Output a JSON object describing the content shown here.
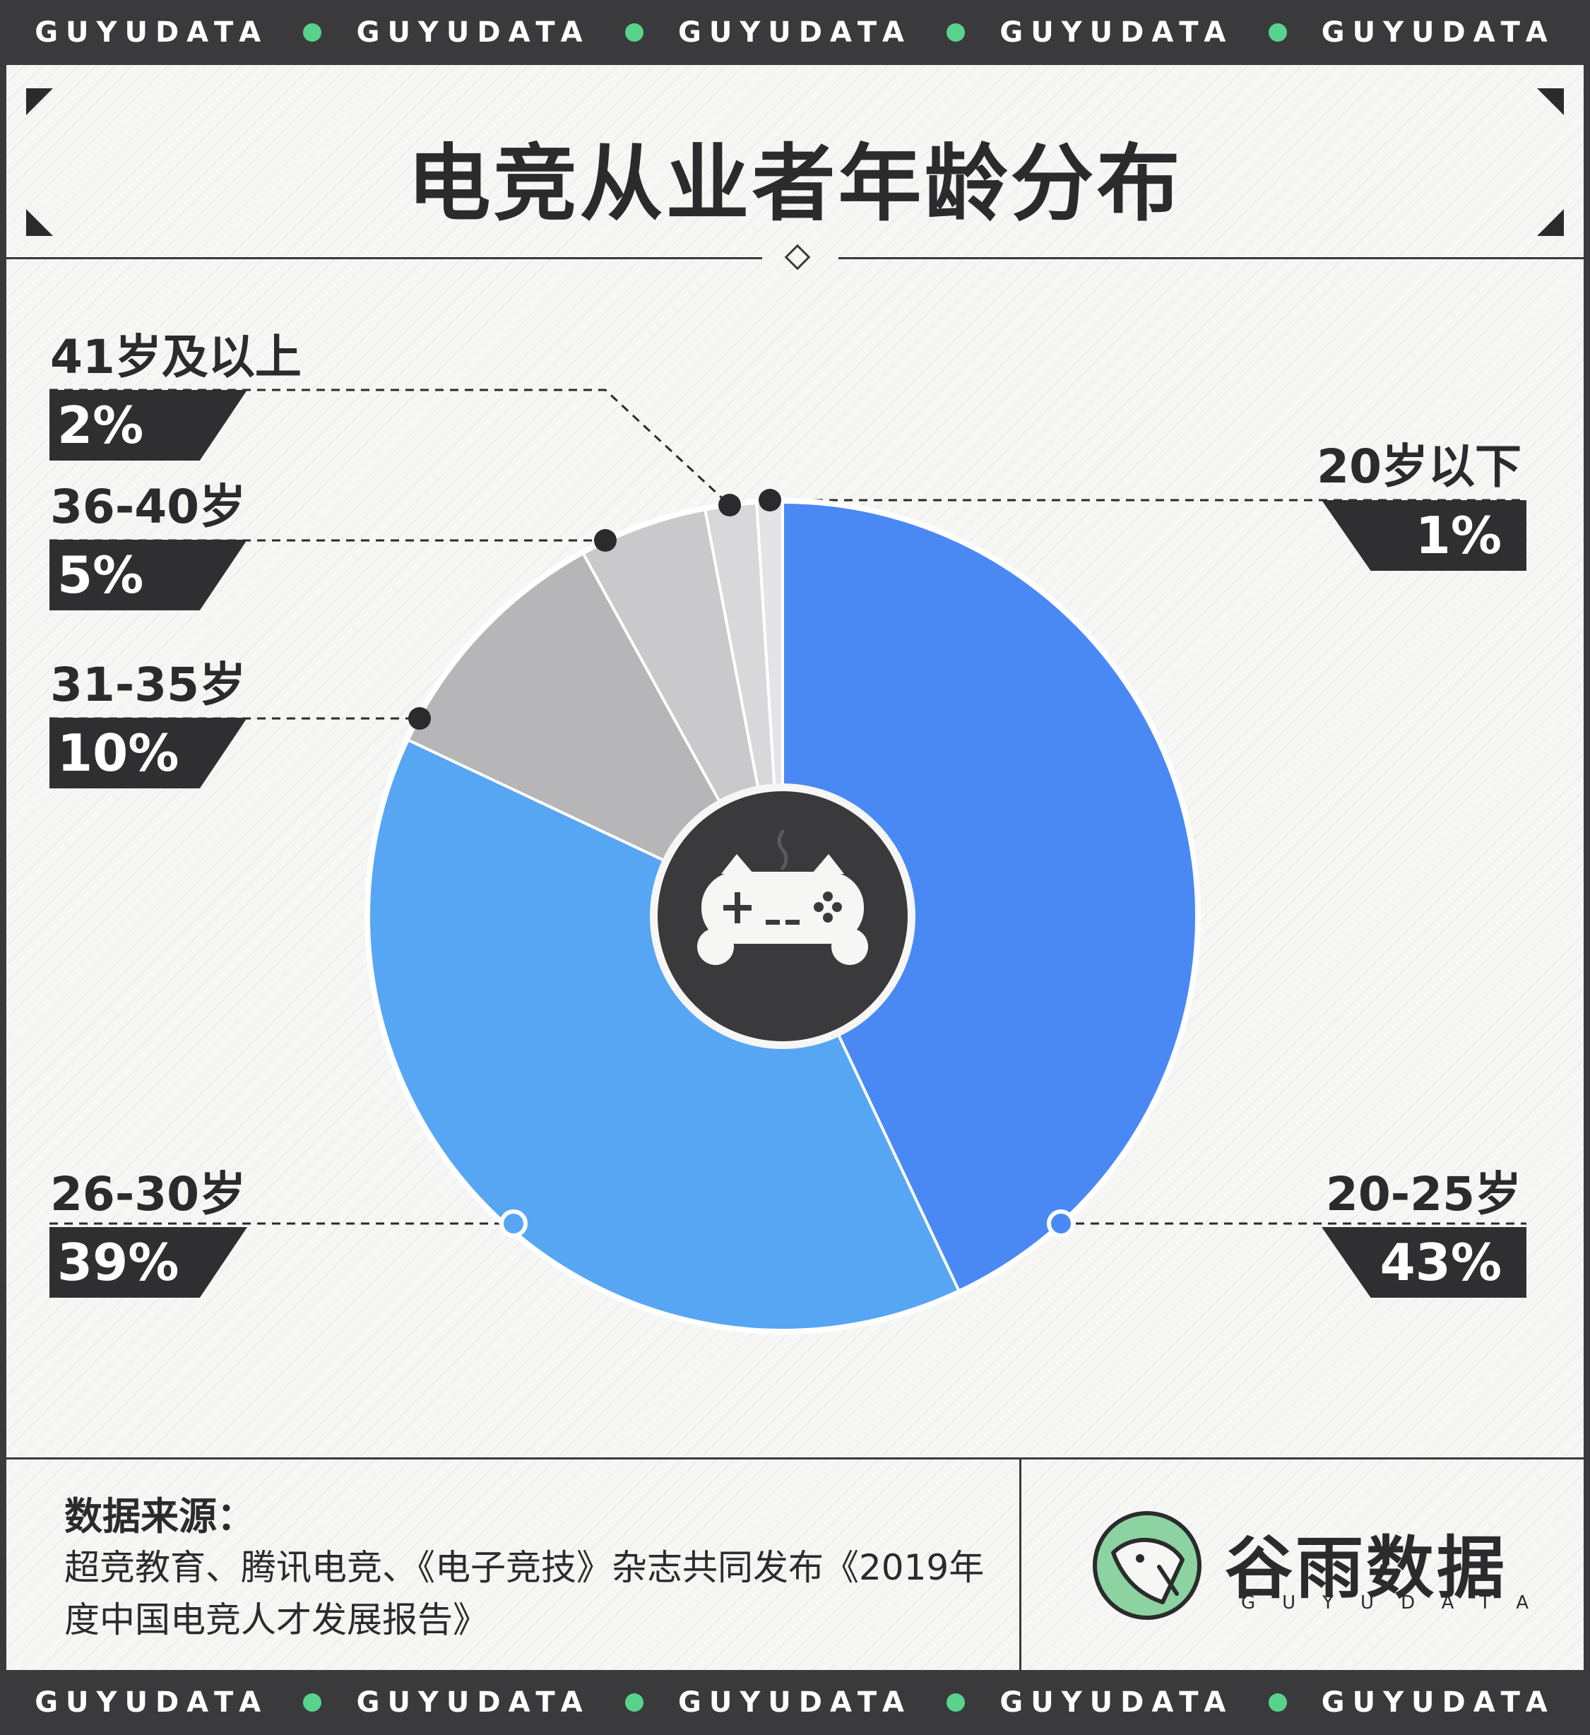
{
  "strip": {
    "items": [
      "GUYUDATA",
      "GUYUDATA",
      "GUYUDATA",
      "GUYUDATA",
      "GUYUDATA"
    ],
    "dot_color": "#57d38c"
  },
  "title": "电竞从业者年龄分布",
  "chart_data": {
    "type": "pie",
    "title": "电竞从业者年龄分布",
    "center_icon": "gamepad-icon",
    "slices": [
      {
        "label": "20岁以下",
        "value": 1,
        "pct_text": "1%",
        "color": "#e4e4e6"
      },
      {
        "label": "20-25岁",
        "value": 43,
        "pct_text": "43%",
        "color": "#4a89f3"
      },
      {
        "label": "26-30岁",
        "value": 39,
        "pct_text": "39%",
        "color": "#57a6f4"
      },
      {
        "label": "31-35岁",
        "value": 10,
        "pct_text": "10%",
        "color": "#b6b6b9"
      },
      {
        "label": "36-40岁",
        "value": 5,
        "pct_text": "5%",
        "color": "#c9c9cc"
      },
      {
        "label": "41岁及以上",
        "value": 2,
        "pct_text": "2%",
        "color": "#d8d8db"
      }
    ]
  },
  "footer": {
    "source_title": "数据来源：",
    "source_text": "超竞教育、腾讯电竞、《电子竞技》杂志共同发布《2019年度中国电竞人才发展报告》",
    "logo_name": "谷雨数据",
    "logo_sub": "GUYUDATA"
  }
}
